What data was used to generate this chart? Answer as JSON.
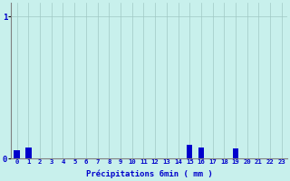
{
  "hours": [
    0,
    1,
    2,
    3,
    4,
    5,
    6,
    7,
    8,
    9,
    10,
    11,
    12,
    13,
    14,
    15,
    16,
    17,
    18,
    19,
    20,
    21,
    22,
    23
  ],
  "values": [
    0.06,
    0.08,
    0,
    0,
    0,
    0,
    0,
    0,
    0,
    0,
    0,
    0,
    0,
    0,
    0,
    0.1,
    0.08,
    0,
    0,
    0.07,
    0,
    0,
    0,
    0
  ],
  "bar_color": "#0000cc",
  "bg_color": "#c8f0ec",
  "grid_color": "#a0c8c4",
  "axis_color": "#808080",
  "text_color": "#0000cc",
  "xlabel": "Précipitations 6min ( mm )",
  "ylim": [
    0,
    1.1
  ],
  "xlim": [
    -0.5,
    23.5
  ],
  "bar_width": 0.5,
  "xlabel_fontsize": 6.5,
  "xtick_fontsize": 5.2,
  "ytick_fontsize": 6.5
}
